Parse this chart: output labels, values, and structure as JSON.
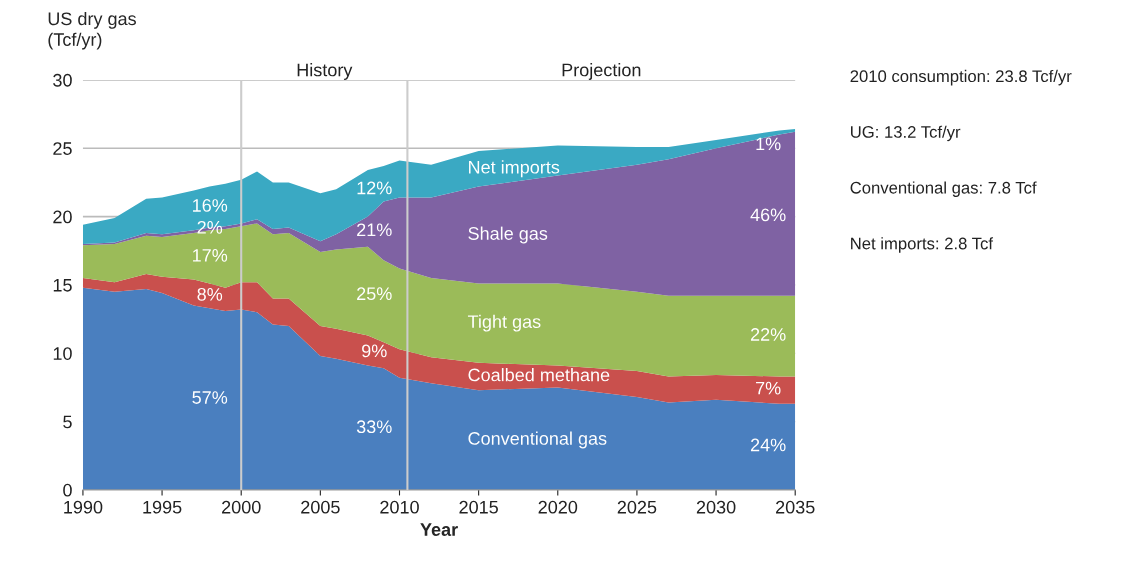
{
  "chart_data": {
    "type": "area",
    "stacked": true,
    "xlabel": "Year",
    "ylabel": "US dry gas\n(Tcf/yr)",
    "x": [
      1990,
      1992,
      1994,
      1995,
      1997,
      1998,
      1999,
      2000,
      2001,
      2002,
      2003,
      2005,
      2006,
      2008,
      2009,
      2010,
      2012,
      2015,
      2020,
      2025,
      2027,
      2030,
      2034,
      2035
    ],
    "series": [
      {
        "name": "Conventional gas",
        "color": "#4a7fbf",
        "values": [
          14.8,
          14.5,
          14.7,
          14.4,
          13.5,
          13.3,
          13.1,
          13.2,
          13.0,
          12.1,
          12.0,
          9.8,
          9.6,
          9.1,
          8.9,
          8.2,
          7.8,
          7.3,
          7.5,
          6.8,
          6.4,
          6.6,
          6.3,
          6.3
        ]
      },
      {
        "name": "Coalbed methane",
        "color": "#c9504d",
        "values": [
          0.7,
          0.7,
          1.1,
          1.2,
          1.9,
          1.8,
          1.7,
          2.0,
          2.2,
          1.9,
          2.0,
          2.2,
          2.2,
          2.2,
          1.9,
          2.1,
          1.9,
          2.0,
          1.6,
          1.9,
          1.9,
          1.8,
          2.0,
          2.0
        ]
      },
      {
        "name": "Tight gas",
        "color": "#9bbb59",
        "values": [
          2.4,
          2.8,
          2.8,
          2.9,
          3.4,
          3.9,
          4.3,
          4.1,
          4.3,
          4.7,
          4.8,
          5.4,
          5.8,
          6.5,
          6.0,
          5.9,
          5.8,
          5.8,
          6.0,
          5.8,
          5.9,
          5.8,
          5.9,
          5.9
        ]
      },
      {
        "name": "Shale gas",
        "color": "#7f62a3",
        "values": [
          0.1,
          0.1,
          0.2,
          0.2,
          0.2,
          0.2,
          0.2,
          0.2,
          0.3,
          0.4,
          0.4,
          0.8,
          1.1,
          2.2,
          4.3,
          5.2,
          5.9,
          7.1,
          7.9,
          9.3,
          10.0,
          10.8,
          11.8,
          12.0
        ]
      },
      {
        "name": "Net imports",
        "color": "#3aa9c3",
        "values": [
          1.4,
          1.8,
          2.5,
          2.7,
          2.9,
          3.0,
          3.1,
          3.2,
          3.5,
          3.4,
          3.3,
          3.5,
          3.3,
          3.4,
          2.6,
          2.7,
          2.4,
          2.6,
          2.2,
          1.3,
          0.9,
          0.6,
          0.3,
          0.2
        ]
      }
    ],
    "xlim": [
      1990,
      2035
    ],
    "ylim": [
      0,
      30
    ],
    "xticks": [
      1990,
      1995,
      2000,
      2005,
      2010,
      2015,
      2020,
      2025,
      2030,
      2035
    ],
    "yticks": [
      0,
      5,
      10,
      15,
      20,
      25,
      30
    ],
    "grid": "y",
    "legend": false,
    "ref_lines": [
      {
        "axis": "x",
        "value": 2000,
        "color": "#cccccc"
      },
      {
        "axis": "x",
        "value": 2010.5,
        "color": "#cccccc"
      }
    ],
    "annotations": [
      "16%",
      "2%",
      "17%",
      "8%",
      "57%",
      "12%",
      "21%",
      "25%",
      "9%",
      "33%",
      "1%",
      "46%",
      "22%",
      "7%",
      "24%",
      "History",
      "Projection",
      "2010 consumption: 23.8 Tcf/yr",
      "UG: 13.2 Tcf/yr",
      "Conventional gas: 7.8 Tcf",
      "Net imports: 2.8 Tcf"
    ]
  }
}
